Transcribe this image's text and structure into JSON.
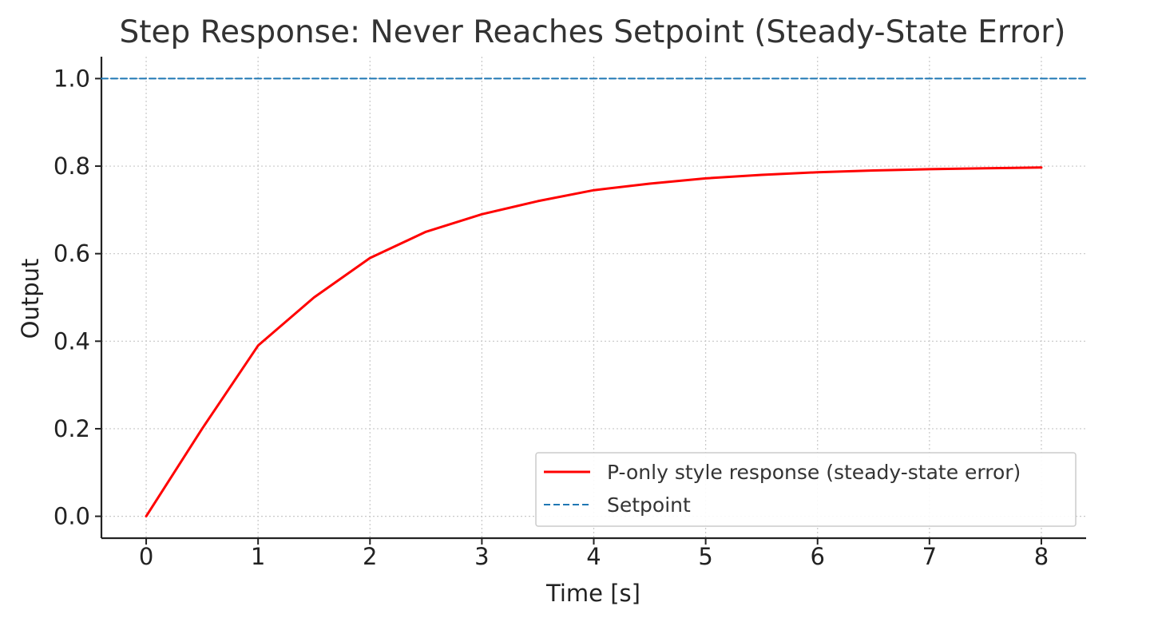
{
  "chart_data": {
    "type": "line",
    "title": "Step Response: Never Reaches Setpoint (Steady-State Error)",
    "xlabel": "Time [s]",
    "ylabel": "Output",
    "xlim": [
      -0.4,
      8.4
    ],
    "ylim": [
      -0.05,
      1.05
    ],
    "xticks": [
      0,
      1,
      2,
      3,
      4,
      5,
      6,
      7,
      8
    ],
    "yticks": [
      0.0,
      0.2,
      0.4,
      0.6,
      0.8,
      1.0
    ],
    "xtick_labels": [
      "0",
      "1",
      "2",
      "3",
      "4",
      "5",
      "6",
      "7",
      "8"
    ],
    "ytick_labels": [
      "0.0",
      "0.2",
      "0.4",
      "0.6",
      "0.8",
      "1.0"
    ],
    "grid": true,
    "legend_position": "bottom-right",
    "series": [
      {
        "name": "P-only style response (steady-state error)",
        "color": "#ff0000",
        "style": "solid",
        "x": [
          0,
          0.5,
          1,
          1.5,
          2,
          2.5,
          3,
          3.5,
          4,
          4.5,
          5,
          5.5,
          6,
          6.5,
          7,
          7.5,
          8
        ],
        "y": [
          0.0,
          0.2,
          0.39,
          0.5,
          0.59,
          0.65,
          0.69,
          0.72,
          0.745,
          0.76,
          0.772,
          0.78,
          0.786,
          0.79,
          0.793,
          0.795,
          0.797
        ]
      },
      {
        "name": "Setpoint",
        "color": "#1f77b4",
        "style": "dashed",
        "x": [
          -0.4,
          8.4
        ],
        "y": [
          1.0,
          1.0
        ]
      }
    ]
  }
}
